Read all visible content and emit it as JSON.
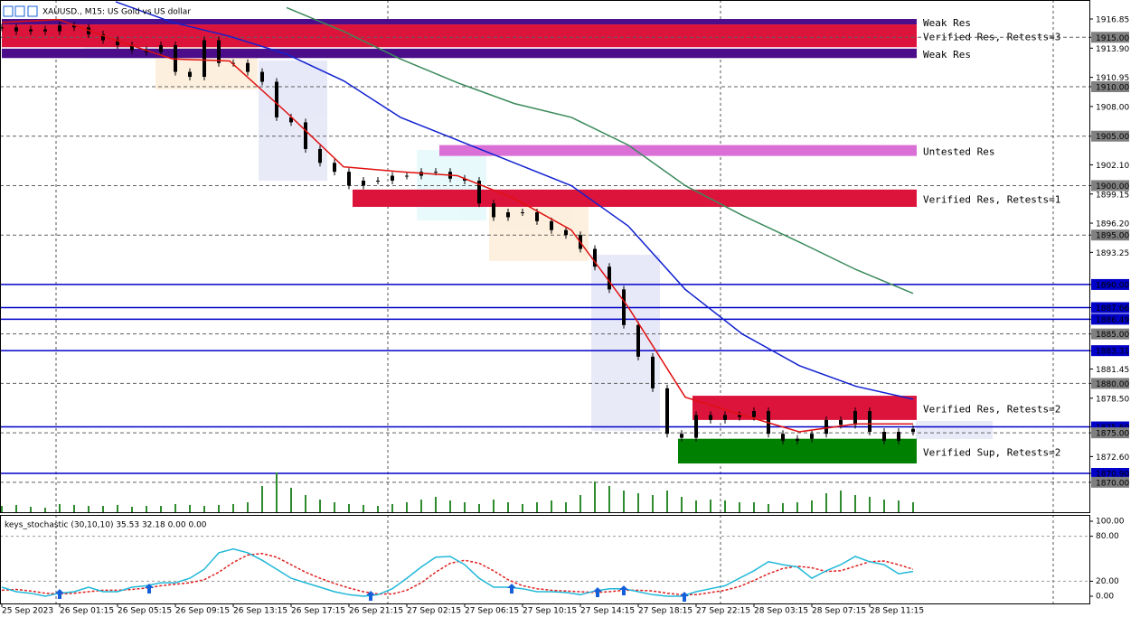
{
  "header": {
    "symbol": "XAUUSD., M15: US Gold vs US dollar"
  },
  "price_range": [
    1866.88,
    1918.77
  ],
  "price_labels": [
    {
      "value": 1916.85,
      "label": "1916.85",
      "style": "plain"
    },
    {
      "value": 1915,
      "label": "1915.00",
      "style": "level"
    },
    {
      "value": 1913.9,
      "label": "1913.90",
      "style": "plain"
    },
    {
      "value": 1910.95,
      "label": "1910.95",
      "style": "plain"
    },
    {
      "value": 1910,
      "label": "1910.00",
      "style": "level"
    },
    {
      "value": 1908,
      "label": "1908.00",
      "style": "plain"
    },
    {
      "value": 1905,
      "label": "1905.00",
      "style": "level"
    },
    {
      "value": 1902.1,
      "label": "1902.10",
      "style": "plain"
    },
    {
      "value": 1900,
      "label": "1900.00",
      "style": "level"
    },
    {
      "value": 1899.15,
      "label": "1899.15",
      "style": "plain"
    },
    {
      "value": 1896.2,
      "label": "1896.20",
      "style": "plain"
    },
    {
      "value": 1895,
      "label": "1895.00",
      "style": "level"
    },
    {
      "value": 1893.25,
      "label": "1893.25",
      "style": "plain"
    },
    {
      "value": 1890,
      "label": "1890.00",
      "style": "line"
    },
    {
      "value": 1887.66,
      "label": "1887.66",
      "style": "line"
    },
    {
      "value": 1886.49,
      "label": "1886.49",
      "style": "line"
    },
    {
      "value": 1885,
      "label": "1885.00",
      "style": "level"
    },
    {
      "value": 1883.31,
      "label": "1883.31",
      "style": "line"
    },
    {
      "value": 1881.45,
      "label": "1881.45",
      "style": "plain"
    },
    {
      "value": 1880,
      "label": "1880.00",
      "style": "level"
    },
    {
      "value": 1878.5,
      "label": "1878.50",
      "style": "plain"
    },
    {
      "value": 1875.6,
      "label": "1875.60",
      "style": "line"
    },
    {
      "value": 1875,
      "label": "1875.00",
      "style": "level"
    },
    {
      "value": 1872.6,
      "label": "1872.60",
      "style": "plain"
    },
    {
      "value": 1870.9,
      "label": "1870.90",
      "style": "line"
    },
    {
      "value": 1870,
      "label": "1870.00",
      "style": "level"
    }
  ],
  "zones": [
    {
      "label": "Weak Res",
      "low": 1916.3,
      "high": 1916.85,
      "start": 0,
      "color": "#4b0d8a"
    },
    {
      "label": "Verified Res, Retests=3",
      "low": 1914.0,
      "high": 1916.3,
      "start": 0,
      "color": "#dc143c"
    },
    {
      "label": "Weak Res",
      "low": 1912.9,
      "high": 1913.85,
      "start": 0,
      "color": "#4b0d8a"
    },
    {
      "label": "Untested Res",
      "low": 1903.0,
      "high": 1904.1,
      "start": 121,
      "color": "#da70d6"
    },
    {
      "label": "Verified Res, Retests=1",
      "low": 1897.85,
      "high": 1899.6,
      "start": 97,
      "color": "#dc143c"
    },
    {
      "label": "Verified Res, Retests=2",
      "low": 1876.3,
      "high": 1878.75,
      "start": 191,
      "color": "#dc143c"
    },
    {
      "label": "Verified Sup, Retests=2",
      "low": 1871.9,
      "high": 1874.4,
      "start": 187,
      "color": "#008000"
    }
  ],
  "zone_end": 253,
  "time_labels": [
    "25 Sep 2023",
    "26 Sep 01:15",
    "26 Sep 05:15",
    "26 Sep 09:15",
    "26 Sep 13:15",
    "26 Sep 17:15",
    "26 Sep 21:15",
    "27 Sep 02:15",
    "27 Sep 06:15",
    "27 Sep 10:15",
    "27 Sep 14:15",
    "27 Sep 18:15",
    "27 Sep 22:15",
    "28 Sep 03:15",
    "28 Sep 07:15",
    "28 Sep 11:15"
  ],
  "closes": [
    1916.0,
    1915.6,
    1915.8,
    1915.6,
    1916.2,
    1916.0,
    1915.3,
    1914.7,
    1914.2,
    1913.7,
    1913.5,
    1914.2,
    1911.5,
    1911.0,
    1914.7,
    1912.4,
    1912.4,
    1911.5,
    1910.5,
    1906.9,
    1906.4,
    1903.7,
    1902.3,
    1901.4,
    1900.0,
    1900.5,
    1900.5,
    1901.0,
    1901.0,
    1901.4,
    1901.4,
    1900.7,
    1900.5,
    1898.2,
    1896.8,
    1897.3,
    1897.3,
    1896.4,
    1895.5,
    1895.0,
    1893.6,
    1891.8,
    1889.5,
    1885.9,
    1882.7,
    1879.5,
    1874.9,
    1874.5,
    1876.8,
    1876.3,
    1876.8,
    1876.6,
    1877.2,
    1874.9,
    1874.2,
    1874.4,
    1874.9,
    1876.3,
    1875.8,
    1877.2,
    1875.1,
    1874.2,
    1875.1,
    1875.4
  ],
  "volume": [
    8,
    9,
    7,
    6,
    10,
    9,
    8,
    8,
    9,
    7,
    8,
    8,
    10,
    9,
    8,
    9,
    10,
    12,
    30,
    45,
    28,
    20,
    15,
    12,
    10,
    9,
    8,
    10,
    12,
    15,
    18,
    14,
    12,
    10,
    15,
    12,
    10,
    12,
    14,
    12,
    20,
    35,
    30,
    25,
    22,
    20,
    25,
    18,
    14,
    15,
    14,
    12,
    12,
    10,
    11,
    12,
    14,
    22,
    25,
    20,
    18,
    15,
    14,
    12
  ],
  "ma": {
    "fast": [
      1916.5,
      1916.8,
      1914.7,
      1912.8,
      1912.6,
      1907.4,
      1901.9,
      1901.4,
      1901.0,
      1898.7,
      1895.5,
      1887.7,
      1878.6,
      1876.8,
      1875.1,
      1875.9,
      1875.9
    ],
    "mid": [
      null,
      null,
      1918.6,
      1916.5,
      1915.1,
      1913.3,
      1910.6,
      1906.9,
      1904.6,
      1902.3,
      1900.0,
      1895.9,
      1889.5,
      1885.0,
      1881.8,
      1879.7,
      1878.4
    ],
    "slow": [
      null,
      null,
      null,
      null,
      null,
      1918.0,
      1915.6,
      1912.8,
      1910.4,
      1908.3,
      1906.9,
      1904.1,
      1900.0,
      1897.0,
      1894.3,
      1891.5,
      1889.1
    ]
  },
  "stochastic": {
    "title": "keys_stochastic (30,10,10) 35.53 32.18 0.00 0.00",
    "range": [
      0,
      100
    ],
    "labels": [
      {
        "value": 100,
        "label": "100.00"
      },
      {
        "value": 80,
        "label": "80.00"
      },
      {
        "value": 20,
        "label": "20.00"
      },
      {
        "value": 0,
        "label": "0.00"
      }
    ],
    "main": [
      12,
      6,
      4,
      0,
      4,
      6,
      12,
      6,
      6,
      12,
      14,
      18,
      18,
      24,
      36,
      58,
      63,
      58,
      48,
      36,
      24,
      18,
      12,
      6,
      2,
      0,
      2,
      10,
      24,
      39,
      52,
      53,
      42,
      24,
      12,
      12,
      10,
      6,
      6,
      5,
      2,
      7,
      10,
      10,
      6,
      2,
      0,
      0,
      6,
      10,
      14,
      24,
      34,
      46,
      42,
      39,
      24,
      34,
      42,
      53,
      46,
      42,
      30,
      33
    ],
    "signal": [
      8,
      9,
      7,
      4,
      3,
      4,
      6,
      8,
      8,
      9,
      11,
      14,
      16,
      18,
      22,
      32,
      45,
      55,
      57,
      52,
      42,
      32,
      24,
      17,
      11,
      6,
      3,
      3,
      8,
      18,
      32,
      44,
      48,
      44,
      34,
      22,
      14,
      10,
      8,
      7,
      6,
      5,
      6,
      8,
      8,
      7,
      4,
      2,
      2,
      5,
      8,
      13,
      21,
      30,
      37,
      40,
      38,
      33,
      34,
      40,
      46,
      47,
      42,
      36
    ]
  }
}
